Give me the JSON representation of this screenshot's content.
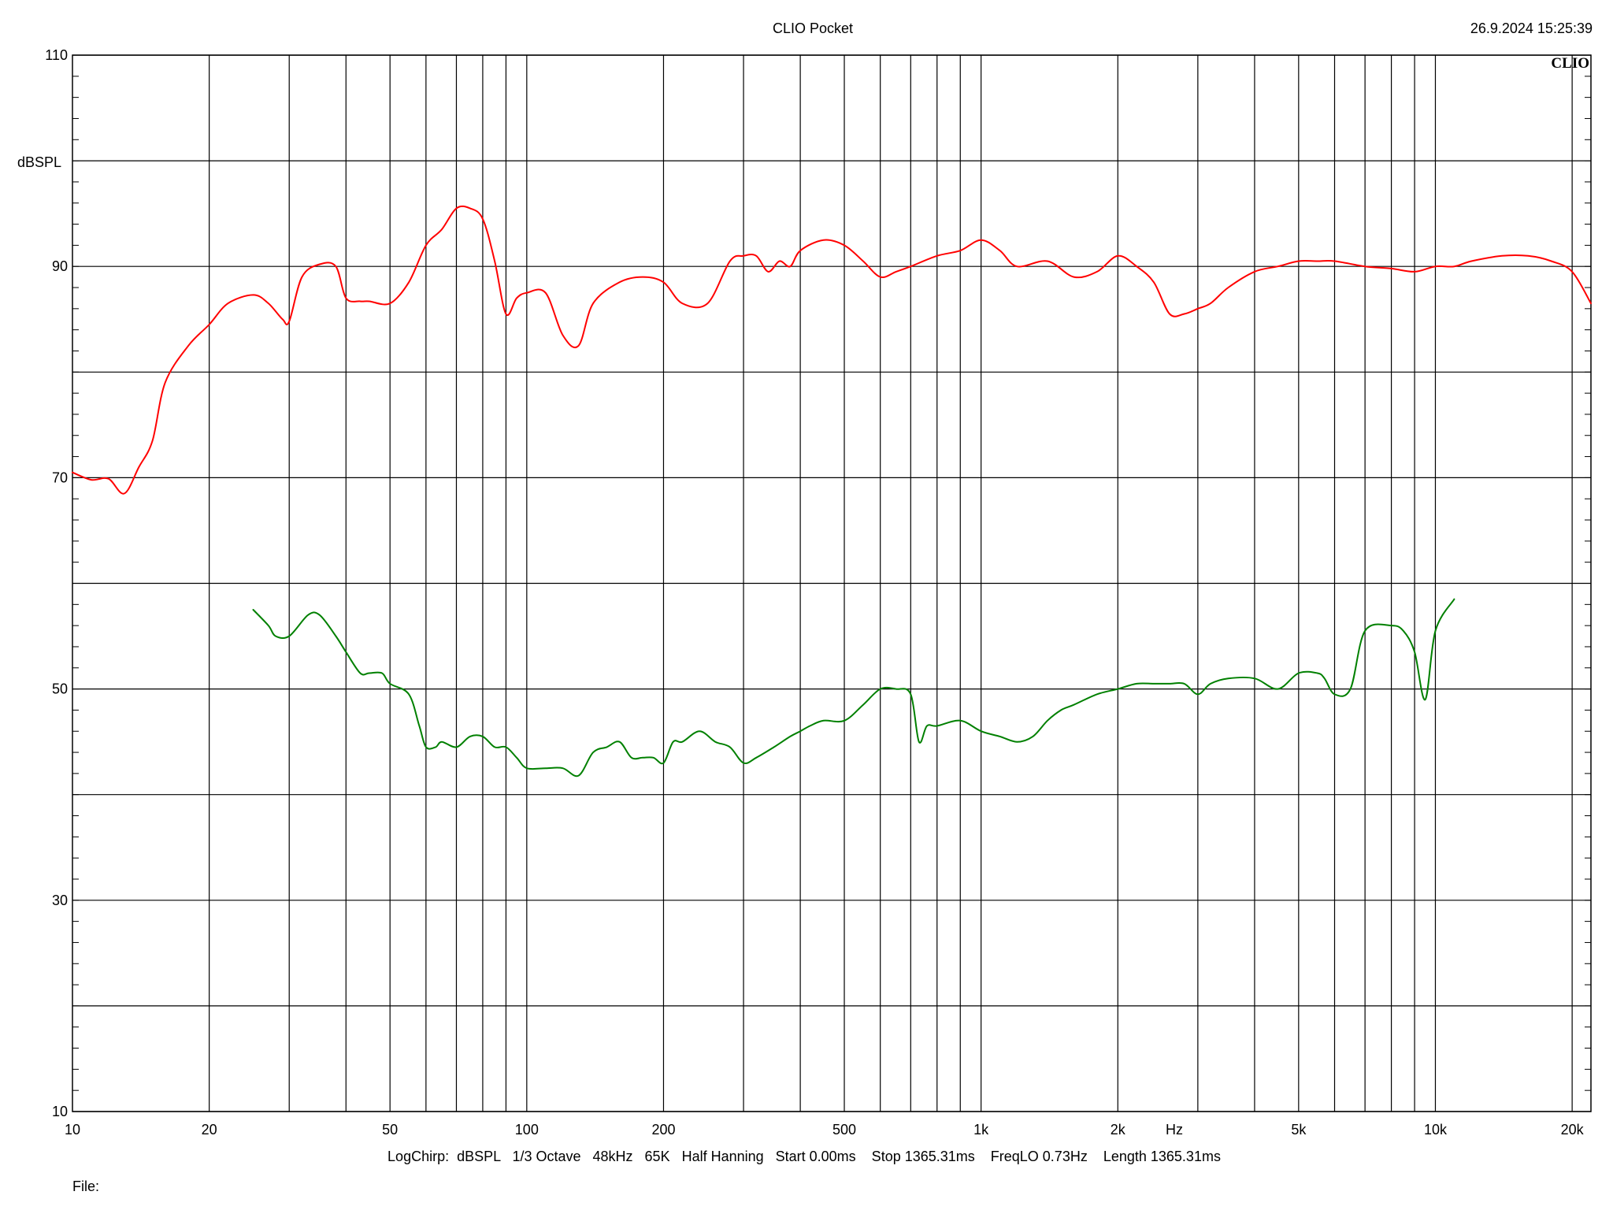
{
  "header": {
    "title": "CLIO Pocket",
    "datetime": "26.9.2024 15:25:39"
  },
  "logo_text": "CLIO",
  "footer": {
    "settings": "LogChirp:  dBSPL   1/3 Octave   48kHz   65K   Half Hanning   Start 0.00ms    Stop 1365.31ms    FreqLO 0.73Hz    Length 1365.31ms",
    "file_label": "File:"
  },
  "chart_data": {
    "type": "line",
    "title": "CLIO Pocket",
    "xlabel": "Hz",
    "ylabel": "dBSPL",
    "xscale": "log",
    "xlim": [
      10,
      22000
    ],
    "ylim": [
      10,
      110
    ],
    "grid": true,
    "y_major_ticks": [
      110,
      90,
      70,
      50,
      30,
      10
    ],
    "y_gridlines": [
      10,
      20,
      30,
      40,
      50,
      60,
      70,
      80,
      90,
      100,
      110
    ],
    "x_tick_labels": [
      {
        "value": 10,
        "label": "10"
      },
      {
        "value": 20,
        "label": "20"
      },
      {
        "value": 50,
        "label": "50"
      },
      {
        "value": 100,
        "label": "100"
      },
      {
        "value": 200,
        "label": "200"
      },
      {
        "value": 500,
        "label": "500"
      },
      {
        "value": 1000,
        "label": "1k"
      },
      {
        "value": 2000,
        "label": "2k"
      },
      {
        "value": 5000,
        "label": "5k"
      },
      {
        "value": 10000,
        "label": "10k"
      },
      {
        "value": 20000,
        "label": "20k"
      }
    ],
    "x_gridlines": [
      20,
      30,
      40,
      50,
      60,
      70,
      80,
      90,
      100,
      200,
      300,
      400,
      500,
      600,
      700,
      800,
      900,
      1000,
      2000,
      3000,
      4000,
      5000,
      6000,
      7000,
      8000,
      9000,
      10000,
      20000
    ],
    "series": [
      {
        "color": "#ff0000",
        "x": [
          10,
          11,
          12,
          13,
          14,
          15,
          16,
          18,
          20,
          22,
          25,
          27,
          29,
          30,
          32,
          35,
          38,
          40,
          43,
          45,
          50,
          55,
          60,
          65,
          70,
          75,
          80,
          85,
          90,
          95,
          100,
          110,
          120,
          130,
          140,
          160,
          180,
          200,
          220,
          250,
          280,
          300,
          320,
          340,
          360,
          380,
          400,
          450,
          500,
          550,
          600,
          650,
          700,
          800,
          900,
          1000,
          1100,
          1200,
          1400,
          1600,
          1800,
          2000,
          2200,
          2400,
          2600,
          2800,
          3000,
          3200,
          3500,
          4000,
          4500,
          5000,
          5500,
          6000,
          7000,
          8000,
          9000,
          10000,
          11000,
          12000,
          14000,
          16000,
          18000,
          20000,
          22000
        ],
        "values": [
          70.5,
          69.8,
          69.9,
          68.5,
          71.0,
          73.5,
          79.0,
          82.5,
          84.5,
          86.5,
          87.3,
          86.5,
          85.0,
          84.8,
          89.0,
          90.2,
          90.0,
          87.0,
          86.7,
          86.7,
          86.5,
          88.5,
          92.0,
          93.5,
          95.5,
          95.5,
          94.5,
          90.5,
          85.5,
          87.0,
          87.5,
          87.5,
          83.5,
          82.5,
          86.5,
          88.5,
          89.0,
          88.5,
          86.5,
          86.5,
          90.5,
          91.0,
          91.0,
          89.5,
          90.5,
          90.0,
          91.5,
          92.5,
          92.0,
          90.5,
          89.0,
          89.5,
          90.0,
          91.0,
          91.5,
          92.5,
          91.5,
          90.0,
          90.5,
          89.0,
          89.5,
          91.0,
          90.0,
          88.5,
          85.5,
          85.5,
          86.0,
          86.5,
          88.0,
          89.5,
          90.0,
          90.5,
          90.5,
          90.5,
          90.0,
          89.8,
          89.5,
          90.0,
          90.0,
          90.5,
          91.0,
          91.0,
          90.5,
          89.5,
          86.5
        ]
      },
      {
        "color": "#008000",
        "x": [
          25,
          27,
          28,
          30,
          33,
          35,
          38,
          40,
          43,
          45,
          48,
          50,
          55,
          58,
          60,
          63,
          65,
          70,
          75,
          80,
          85,
          90,
          95,
          100,
          110,
          120,
          130,
          140,
          150,
          160,
          170,
          180,
          190,
          200,
          210,
          220,
          240,
          260,
          280,
          300,
          320,
          350,
          380,
          400,
          420,
          450,
          500,
          550,
          600,
          650,
          700,
          730,
          760,
          800,
          900,
          1000,
          1100,
          1200,
          1300,
          1400,
          1500,
          1600,
          1800,
          2000,
          2200,
          2400,
          2600,
          2800,
          3000,
          3200,
          3500,
          4000,
          4500,
          5000,
          5500,
          5700,
          6000,
          6500,
          7000,
          8000,
          8500,
          9000,
          9500,
          10000,
          11000
        ],
        "values": [
          57.5,
          56.0,
          55.0,
          55.0,
          57.0,
          57.0,
          55.0,
          53.5,
          51.5,
          51.5,
          51.5,
          50.5,
          49.5,
          46.5,
          44.5,
          44.5,
          45.0,
          44.5,
          45.5,
          45.5,
          44.5,
          44.5,
          43.5,
          42.5,
          42.5,
          42.5,
          41.8,
          44.0,
          44.5,
          45.0,
          43.5,
          43.5,
          43.5,
          43.0,
          45.0,
          45.0,
          46.0,
          45.0,
          44.5,
          43.0,
          43.5,
          44.5,
          45.5,
          46.0,
          46.5,
          47.0,
          47.0,
          48.5,
          50.0,
          50.0,
          49.5,
          45.0,
          46.5,
          46.5,
          47.0,
          46.0,
          45.5,
          45.0,
          45.5,
          47.0,
          48.0,
          48.5,
          49.5,
          50.0,
          50.5,
          50.5,
          50.5,
          50.5,
          49.5,
          50.5,
          51.0,
          51.0,
          50.0,
          51.5,
          51.5,
          51.0,
          49.5,
          50.0,
          55.5,
          56.0,
          55.5,
          53.5,
          49.0,
          55.5,
          58.5
        ]
      }
    ]
  }
}
